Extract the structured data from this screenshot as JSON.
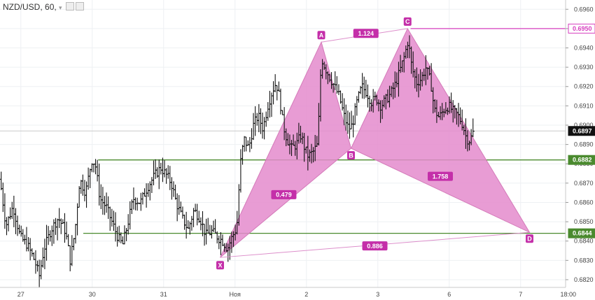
{
  "header": {
    "symbol": "NZD/USD",
    "interval": "60"
  },
  "chart_data": {
    "type": "candlestick",
    "y_ticks": [
      0.682,
      0.683,
      0.684,
      0.685,
      0.686,
      0.687,
      0.688,
      0.689,
      0.69,
      0.691,
      0.692,
      0.693,
      0.694,
      0.695,
      0.696
    ],
    "ylim": [
      0.6816,
      0.69648
    ],
    "x_ticks": [
      {
        "label": "27",
        "t": 0.035
      },
      {
        "label": "30",
        "t": 0.155
      },
      {
        "label": "31",
        "t": 0.275
      },
      {
        "label": "Ноя",
        "t": 0.395
      },
      {
        "label": "2",
        "t": 0.515
      },
      {
        "label": "3",
        "t": 0.635
      },
      {
        "label": "6",
        "t": 0.755
      },
      {
        "label": "7",
        "t": 0.875
      },
      {
        "label": "18:00",
        "t": 0.955
      }
    ],
    "horizontal_lines": [
      {
        "price": 0.6882,
        "label": "0.6882",
        "color": "#4a8a2e",
        "text_color": "#ffffff",
        "x_start_t": 0.165
      },
      {
        "price": 0.6844,
        "label": "0.6844",
        "color": "#4a8a2e",
        "text_color": "#ffffff",
        "x_start_t": 0.14
      },
      {
        "price": 0.695,
        "label": "0.6950",
        "color": "#d63fbf",
        "text_color": "#d63fbf",
        "x_start_t": 0.69
      }
    ],
    "current_price": {
      "price": 0.6897,
      "label": "0.6897",
      "color": "#111111"
    },
    "pattern": {
      "points": [
        {
          "name": "X",
          "t": 0.37,
          "price": 0.68315
        },
        {
          "name": "A",
          "t": 0.54,
          "price": 0.6943
        },
        {
          "name": "B",
          "t": 0.59,
          "price": 0.6888
        },
        {
          "name": "C",
          "t": 0.685,
          "price": 0.695
        },
        {
          "name": "D",
          "t": 0.89,
          "price": 0.68445
        }
      ],
      "ratios": [
        {
          "label": "1.124",
          "t": 0.615,
          "price": 0.69475
        },
        {
          "label": "0.479",
          "t": 0.477,
          "price": 0.6864
        },
        {
          "label": "1.758",
          "t": 0.74,
          "price": 0.68735
        },
        {
          "label": "0.886",
          "t": 0.63,
          "price": 0.68375
        }
      ],
      "fill": "#e48bcc",
      "stroke": "#d47ab9"
    },
    "price_path": [
      [
        0.0,
        0.6872
      ],
      [
        0.01,
        0.6848
      ],
      [
        0.022,
        0.6858
      ],
      [
        0.034,
        0.6842
      ],
      [
        0.046,
        0.6838
      ],
      [
        0.058,
        0.683
      ],
      [
        0.066,
        0.6822
      ],
      [
        0.074,
        0.6836
      ],
      [
        0.086,
        0.6846
      ],
      [
        0.098,
        0.6852
      ],
      [
        0.11,
        0.6845
      ],
      [
        0.118,
        0.683
      ],
      [
        0.126,
        0.6845
      ],
      [
        0.134,
        0.6872
      ],
      [
        0.144,
        0.6865
      ],
      [
        0.154,
        0.6882
      ],
      [
        0.16,
        0.688
      ],
      [
        0.168,
        0.6862
      ],
      [
        0.178,
        0.6858
      ],
      [
        0.188,
        0.685
      ],
      [
        0.198,
        0.6842
      ],
      [
        0.206,
        0.6838
      ],
      [
        0.214,
        0.6848
      ],
      [
        0.224,
        0.6862
      ],
      [
        0.236,
        0.686
      ],
      [
        0.248,
        0.6868
      ],
      [
        0.26,
        0.6874
      ],
      [
        0.27,
        0.6878
      ],
      [
        0.28,
        0.6874
      ],
      [
        0.288,
        0.687
      ],
      [
        0.296,
        0.686
      ],
      [
        0.306,
        0.6852
      ],
      [
        0.316,
        0.6846
      ],
      [
        0.326,
        0.6856
      ],
      [
        0.336,
        0.6852
      ],
      [
        0.346,
        0.6843
      ],
      [
        0.356,
        0.6845
      ],
      [
        0.366,
        0.6842
      ],
      [
        0.374,
        0.684
      ],
      [
        0.382,
        0.6836
      ],
      [
        0.39,
        0.6842
      ],
      [
        0.398,
        0.6847
      ],
      [
        0.404,
        0.688
      ],
      [
        0.41,
        0.6893
      ],
      [
        0.418,
        0.6888
      ],
      [
        0.426,
        0.69
      ],
      [
        0.434,
        0.6905
      ],
      [
        0.442,
        0.6898
      ],
      [
        0.45,
        0.691
      ],
      [
        0.458,
        0.6918
      ],
      [
        0.464,
        0.6922
      ],
      [
        0.47,
        0.6914
      ],
      [
        0.476,
        0.69
      ],
      [
        0.482,
        0.6893
      ],
      [
        0.49,
        0.6888
      ],
      [
        0.498,
        0.689
      ],
      [
        0.506,
        0.6895
      ],
      [
        0.512,
        0.6888
      ],
      [
        0.518,
        0.6884
      ],
      [
        0.526,
        0.6886
      ],
      [
        0.534,
        0.689
      ],
      [
        0.54,
        0.6935
      ],
      [
        0.546,
        0.693
      ],
      [
        0.554,
        0.6925
      ],
      [
        0.562,
        0.692
      ],
      [
        0.57,
        0.6915
      ],
      [
        0.578,
        0.6905
      ],
      [
        0.586,
        0.6898
      ],
      [
        0.592,
        0.69
      ],
      [
        0.6,
        0.6912
      ],
      [
        0.608,
        0.692
      ],
      [
        0.616,
        0.6917
      ],
      [
        0.624,
        0.6912
      ],
      [
        0.632,
        0.6914
      ],
      [
        0.64,
        0.691
      ],
      [
        0.648,
        0.6913
      ],
      [
        0.656,
        0.6916
      ],
      [
        0.664,
        0.6921
      ],
      [
        0.672,
        0.6928
      ],
      [
        0.68,
        0.6936
      ],
      [
        0.686,
        0.6944
      ],
      [
        0.692,
        0.693
      ],
      [
        0.7,
        0.6922
      ],
      [
        0.708,
        0.6924
      ],
      [
        0.716,
        0.693
      ],
      [
        0.724,
        0.6922
      ],
      [
        0.73,
        0.6908
      ],
      [
        0.738,
        0.6904
      ],
      [
        0.746,
        0.6908
      ],
      [
        0.754,
        0.691
      ],
      [
        0.762,
        0.6907
      ],
      [
        0.77,
        0.6905
      ],
      [
        0.778,
        0.69
      ],
      [
        0.784,
        0.6893
      ],
      [
        0.79,
        0.6892
      ],
      [
        0.796,
        0.6897
      ]
    ]
  }
}
